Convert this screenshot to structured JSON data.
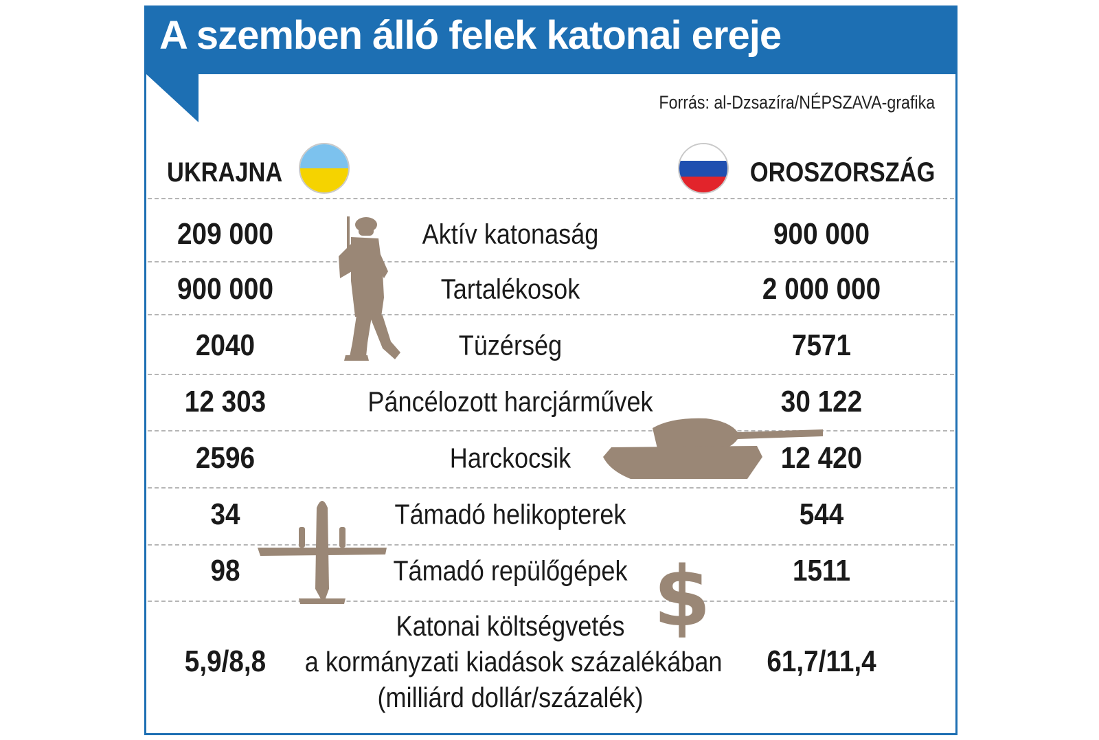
{
  "title": "A szemben álló felek katonai ereje",
  "source": "Forrás: al-Dzsazíra/NÉPSZAVA-grafika",
  "countries": {
    "left": {
      "name": "UKRAJNA",
      "flag_colors": [
        "#7cc2ee",
        "#f5d300"
      ]
    },
    "right": {
      "name": "OROSZORSZÁG",
      "flag_colors": [
        "#ffffff",
        "#1f4fb0",
        "#e2242b"
      ]
    }
  },
  "colors": {
    "accent": "#1d6fb3",
    "icon": "#9a8776",
    "divider": "#b5b5b5"
  },
  "icons": [
    "soldier-icon",
    "tank-icon",
    "airplane-icon",
    "dollar-icon"
  ],
  "chart_data": {
    "type": "table",
    "columns": [
      "UKRAJNA",
      "",
      "OROSZORSZÁG"
    ],
    "rows": [
      {
        "label": "Aktív katonaság",
        "ukrajna": "209 000",
        "oroszorszag": "900 000"
      },
      {
        "label": "Tartalékosok",
        "ukrajna": "900 000",
        "oroszorszag": "2 000 000"
      },
      {
        "label": "Tüzérség",
        "ukrajna": "2040",
        "oroszorszag": "7571"
      },
      {
        "label": "Páncélozott harcjárművek",
        "ukrajna": "12 303",
        "oroszorszag": "30 122"
      },
      {
        "label": "Harckocsik",
        "ukrajna": "2596",
        "oroszorszag": "12 420"
      },
      {
        "label": "Támadó helikopterek",
        "ukrajna": "34",
        "oroszorszag": "544"
      },
      {
        "label": "Támadó repülőgépek",
        "ukrajna": "98",
        "oroszorszag": "1511"
      },
      {
        "label_lines": [
          "Katonai költségvetés",
          "a kormányzati kiadások százalékában",
          "(milliárd dollár/százalék)"
        ],
        "ukrajna": "5,9/8,8",
        "oroszorszag": "61,7/11,4"
      }
    ]
  }
}
